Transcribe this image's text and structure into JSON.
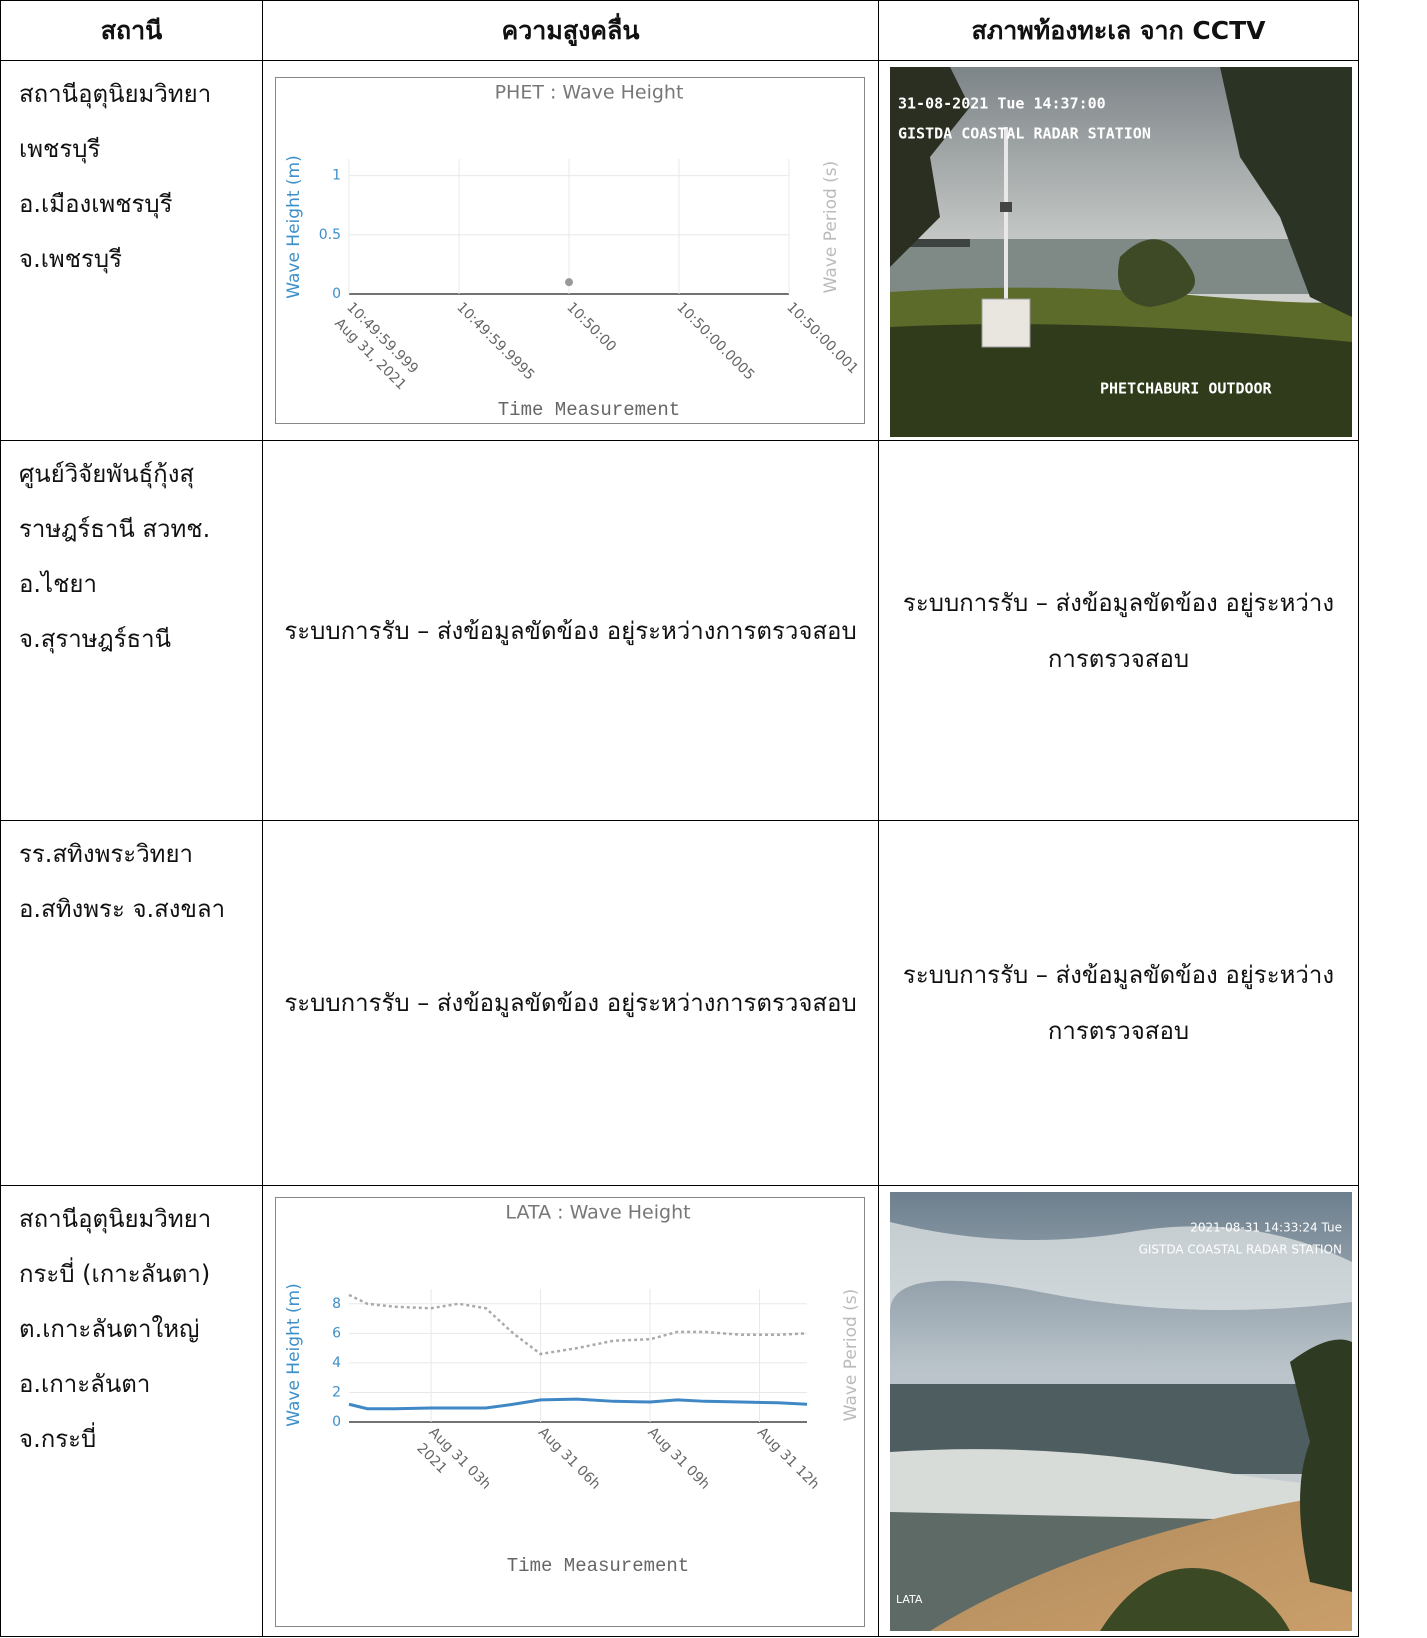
{
  "table": {
    "header": [
      "สถานี",
      "ความสูงคลื่น",
      "สภาพท้องทะเล จาก CCTV"
    ],
    "rows": [
      {
        "station": [
          "สถานีอุตุนิยมวิทยา",
          "เพชรบุรี",
          "อ.เมืองเพชรบุรี",
          "จ.เพชรบุรี"
        ],
        "cctv": {
          "timestamp": "31-08-2021 Tue 14:37:00",
          "station_label": "GISTDA COASTAL RADAR STATION",
          "location": "PHETCHABURI OUTDOOR"
        }
      },
      {
        "station": [
          "ศูนย์วิจัยพันธุ์กุ้งสุ",
          "ราษฎร์ธานี สวทช.",
          "อ.ไชยา",
          "จ.สุราษฎร์ธานี"
        ],
        "wave_status": "ระบบการรับ – ส่งข้อมูลขัดข้อง อยู่ระหว่างการตรวจสอบ",
        "cctv_status": "ระบบการรับ – ส่งข้อมูลขัดข้อง อยู่ระหว่างการตรวจสอบ"
      },
      {
        "station": [
          "รร.สทิงพระวิทยา",
          "อ.สทิงพระ จ.สงขลา"
        ],
        "wave_status": "ระบบการรับ – ส่งข้อมูลขัดข้อง อยู่ระหว่างการตรวจสอบ",
        "cctv_status": "ระบบการรับ – ส่งข้อมูลขัดข้อง อยู่ระหว่างการตรวจสอบ"
      },
      {
        "station": [
          "สถานีอุตุนิยมวิทยา",
          "กระบี่ (เกาะลันตา)",
          "ต.เกาะลันตาใหญ่",
          "อ.เกาะลันตา",
          "จ.กระบี่"
        ],
        "cctv": {
          "timestamp": "2021-08-31 14:33:24 Tue",
          "station_label": "GISTDA COASTAL RADAR STATION",
          "location": "LATA"
        }
      }
    ]
  },
  "chart_data": [
    {
      "type": "line",
      "title": "PHET : Wave Height",
      "xlabel": "Time Measurement",
      "ylabel": "Wave Height (m)",
      "y2label": "Wave Period (s)",
      "xlim": [
        38999.999,
        39000.001
      ],
      "xticks": [
        {
          "value": 38999.999,
          "label": "10:49:59.999"
        },
        {
          "value": 38999.9995,
          "label": "10:49:59.9995"
        },
        {
          "value": 39000,
          "label": "10:50:00"
        },
        {
          "value": 39000.0005,
          "label": "10:50:00.0005"
        },
        {
          "value": 39000.001,
          "label": "10:50:00.001"
        }
      ],
      "x_tick_sublabel": "Aug 31, 2021",
      "ylim": [
        0,
        1.14
      ],
      "yticks": [
        0,
        0.5,
        1
      ],
      "grid": true,
      "series": [
        {
          "color": "#999999",
          "mode": "markers",
          "x": [
            39000
          ],
          "values": [
            0.1
          ]
        }
      ]
    },
    {
      "type": "line",
      "title": "LATA : Wave Height",
      "xlabel": "Time Measurement",
      "ylabel": "Wave Height (m)",
      "y2label": "Wave Period (s)",
      "xlim": [
        0.75,
        13.3
      ],
      "xticks": [
        {
          "value": 3,
          "label": "Aug 31 03h"
        },
        {
          "value": 6,
          "label": "Aug 31 06h"
        },
        {
          "value": 9,
          "label": "Aug 31 09h"
        },
        {
          "value": 12,
          "label": "Aug 31 12h"
        }
      ],
      "x_tick_sublabel": "2021",
      "ylim": [
        0,
        9
      ],
      "yticks": [
        0,
        2,
        4,
        6,
        8
      ],
      "grid": true,
      "series": [
        {
          "color": "#3f88c5",
          "mode": "lines",
          "x": [
            0.75,
            1.25,
            2,
            3,
            3.75,
            4.5,
            5.25,
            6,
            7,
            8,
            9,
            9.75,
            10.5,
            11.5,
            12.5,
            13.3
          ],
          "values": [
            1.2,
            0.9,
            0.9,
            0.95,
            0.95,
            0.95,
            1.2,
            1.5,
            1.55,
            1.4,
            1.35,
            1.5,
            1.4,
            1.35,
            1.3,
            1.2
          ]
        },
        {
          "color": "#aaaaaa",
          "mode": "lines",
          "dash": "dot",
          "x": [
            0.75,
            1.25,
            2,
            3,
            3.75,
            4.5,
            5.25,
            6,
            7,
            8,
            9,
            9.75,
            10.5,
            11.5,
            12.5,
            13.3
          ],
          "values": [
            8.6,
            8.0,
            7.8,
            7.7,
            8.0,
            7.7,
            6.0,
            4.6,
            5.0,
            5.5,
            5.6,
            6.1,
            6.1,
            5.9,
            5.9,
            6.0
          ]
        }
      ]
    }
  ]
}
